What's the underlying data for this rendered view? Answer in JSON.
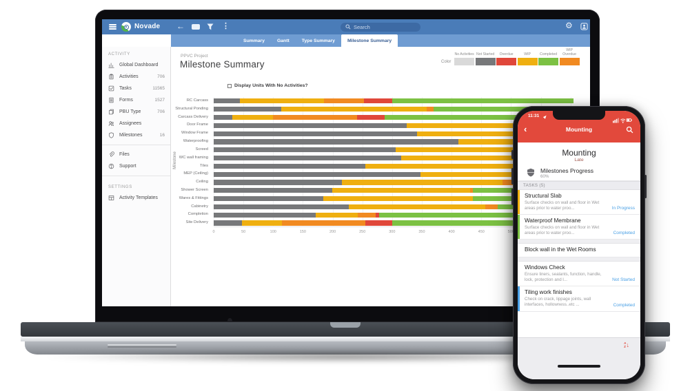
{
  "laptop": {
    "topbar": {
      "app_name": "Novade",
      "search_placeholder": "Search"
    },
    "tabs": [
      "Summary",
      "Gantt",
      "Type Summary",
      "Milestone Summary"
    ],
    "active_tab": 3,
    "sidebar": {
      "groups": [
        {
          "header": "ACTIVITY",
          "items": [
            {
              "icon": "dashboard-icon",
              "label": "Global Dashboard",
              "count": ""
            },
            {
              "icon": "activities-icon",
              "label": "Activities",
              "count": "706"
            },
            {
              "icon": "tasks-icon",
              "label": "Tasks",
              "count": "11565"
            },
            {
              "icon": "forms-icon",
              "label": "Forms",
              "count": "1527"
            },
            {
              "icon": "pbu-icon",
              "label": "PBU Type",
              "count": "706"
            },
            {
              "icon": "assignees-icon",
              "label": "Assignees",
              "count": ""
            },
            {
              "icon": "milestones-icon",
              "label": "Milestones",
              "count": "16"
            }
          ]
        },
        {
          "header": "",
          "items": [
            {
              "icon": "files-icon",
              "label": "Files",
              "count": ""
            },
            {
              "icon": "support-icon",
              "label": "Support",
              "count": ""
            }
          ]
        },
        {
          "header": "SETTINGS",
          "items": [
            {
              "icon": "templates-icon",
              "label": "Activity Templates",
              "count": ""
            }
          ]
        }
      ]
    },
    "main": {
      "project_label": "PPVC Project",
      "page_title": "Milestone Summary",
      "checkbox_label": "Display Units With No Activities?",
      "checkbox_checked": false,
      "legend": {
        "label": "Color",
        "entries": [
          {
            "label": "No Activities",
            "color": "#d9d9d9"
          },
          {
            "label": "Not Started",
            "color": "#77787a"
          },
          {
            "label": "Overdue",
            "color": "#e0473a"
          },
          {
            "label": "WIP",
            "color": "#efaf10"
          },
          {
            "label": "Completed",
            "color": "#7cc143"
          },
          {
            "label": "WIP Overdue",
            "color": "#f18a21"
          }
        ]
      }
    },
    "chart_data": {
      "type": "bar",
      "orientation": "horizontal",
      "stacked": true,
      "title": "Milestone Summary",
      "xlabel": "",
      "ylabel": "Milestone",
      "xlim": [
        0,
        605
      ],
      "xticks": [
        0,
        50,
        100,
        150,
        200,
        250,
        300,
        350,
        400,
        450,
        500,
        550,
        600
      ],
      "grid": true,
      "legend_position": "top-right",
      "categories": [
        "RC Carcass",
        "Structural Ponding",
        "Carcass Delivery",
        "Door Frame",
        "Window Frame",
        "Waterproofing",
        "Screed",
        "WC wall framing",
        "Tiles",
        "MEP (Ceiling)",
        "Ceiling",
        "Shower Screen",
        "Wares & Fittings",
        "Cabinetry",
        "Completion",
        "Site Delivery"
      ],
      "series": [
        {
          "name": "Not Started",
          "color": "#77787a",
          "values": [
            44,
            114,
            31,
            324,
            342,
            412,
            306,
            315,
            255,
            348,
            216,
            199,
            184,
            227,
            171,
            47
          ]
        },
        {
          "name": "WIP",
          "color": "#efaf10",
          "values": [
            141,
            244,
            69,
            281,
            263,
            193,
            299,
            290,
            350,
            257,
            270,
            232,
            252,
            230,
            71,
            68
          ]
        },
        {
          "name": "WIP Overdue",
          "color": "#f18a21",
          "values": [
            68,
            12,
            141,
            0,
            0,
            0,
            0,
            0,
            0,
            0,
            30,
            5,
            0,
            20,
            30,
            140
          ]
        },
        {
          "name": "Overdue",
          "color": "#e0473a",
          "values": [
            47,
            0,
            46,
            0,
            0,
            0,
            0,
            0,
            0,
            0,
            0,
            0,
            0,
            0,
            6,
            45
          ]
        },
        {
          "name": "Completed",
          "color": "#7cc143",
          "values": [
            305,
            235,
            318,
            0,
            0,
            0,
            0,
            0,
            0,
            0,
            89,
            169,
            169,
            128,
            327,
            305
          ]
        }
      ]
    }
  },
  "phone": {
    "accent_color": "#e2493c",
    "status_color": "#4aa0e5",
    "status_bar": {
      "time": "11:31"
    },
    "nav": {
      "title": "Mounting"
    },
    "header": {
      "title": "Mounting",
      "subtitle": "Late"
    },
    "progress": {
      "label": "Milestones Progress",
      "value": "60%"
    },
    "tasks_header": "TASKS (5)",
    "tasks": [
      {
        "title": "Structural Slab",
        "desc": "Surface checks on wall and floor in Wet areas prior to water proo...",
        "status": "In Progress",
        "strip": "#efaf10",
        "gap_before": false
      },
      {
        "title": "Waterproof Membrane",
        "desc": "Surface checks on wall and floor in Wet areas prior to water proo...",
        "status": "Completed",
        "strip": "#7cc143",
        "gap_before": false
      },
      {
        "title": "Block wall in the Wet Rooms",
        "desc": "",
        "status": "",
        "strip": "",
        "gap_before": true
      },
      {
        "title": "Windows Check",
        "desc": "Ensure liners, sealants, function, handle, lock, protection and l...",
        "status": "Not Started",
        "strip": "",
        "gap_before": true
      },
      {
        "title": "Tiling work finishes",
        "desc": "Check on crack, lippage joints, wall interfaces, hollowness..etc ...",
        "status": "Completed",
        "strip": "#4aa0e5",
        "gap_before": false
      }
    ],
    "sort": {
      "letters": [
        "A",
        "Z"
      ],
      "arrow": "↓"
    }
  }
}
